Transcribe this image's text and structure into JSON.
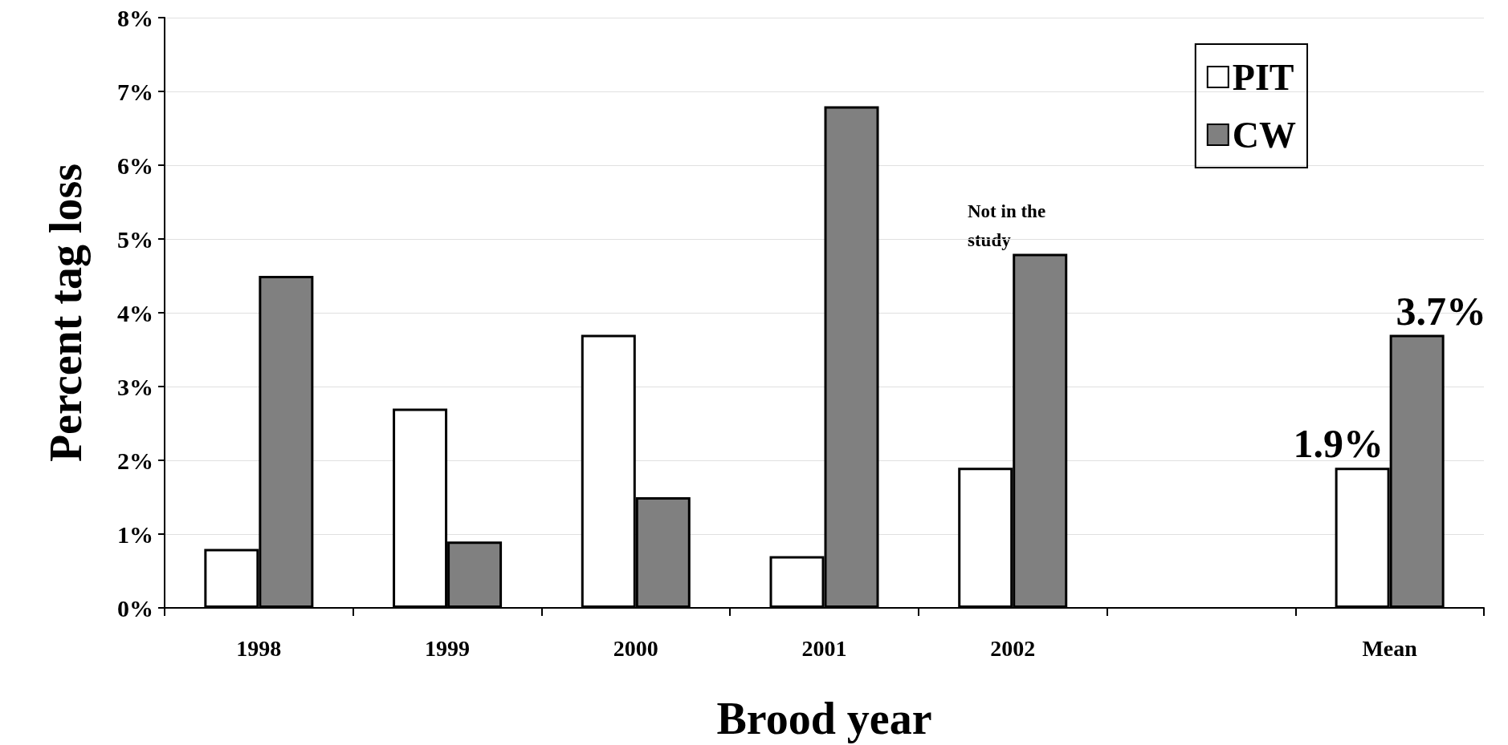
{
  "chart_data": {
    "type": "bar",
    "xlabel": "Brood year",
    "ylabel": "Percent tag loss",
    "categories": [
      "1998",
      "1999",
      "2000",
      "2001",
      "2002",
      null,
      "Mean"
    ],
    "series": [
      {
        "name": "PIT",
        "color": "#ffffff",
        "values": [
          0.8,
          2.7,
          3.7,
          0.7,
          1.9,
          null,
          1.9
        ],
        "value_labels": [
          null,
          null,
          null,
          null,
          null,
          null,
          "1.9%"
        ]
      },
      {
        "name": "CW",
        "color": "#808080",
        "values": [
          4.5,
          0.9,
          1.5,
          6.8,
          4.8,
          null,
          3.7
        ],
        "value_labels": [
          null,
          null,
          null,
          null,
          null,
          null,
          "3.7%"
        ]
      }
    ],
    "ylim": [
      0,
      8
    ],
    "yticks": [
      {
        "value": 0,
        "label": "0%"
      },
      {
        "value": 1,
        "label": "1%"
      },
      {
        "value": 2,
        "label": "2%"
      },
      {
        "value": 3,
        "label": "3%"
      },
      {
        "value": 4,
        "label": "4%"
      },
      {
        "value": 5,
        "label": "5%"
      },
      {
        "value": 6,
        "label": "6%"
      },
      {
        "value": 7,
        "label": "7%"
      },
      {
        "value": 8,
        "label": "8%"
      }
    ],
    "grid": "y",
    "legend": "top right",
    "annotations": [
      "Not in the study"
    ]
  }
}
